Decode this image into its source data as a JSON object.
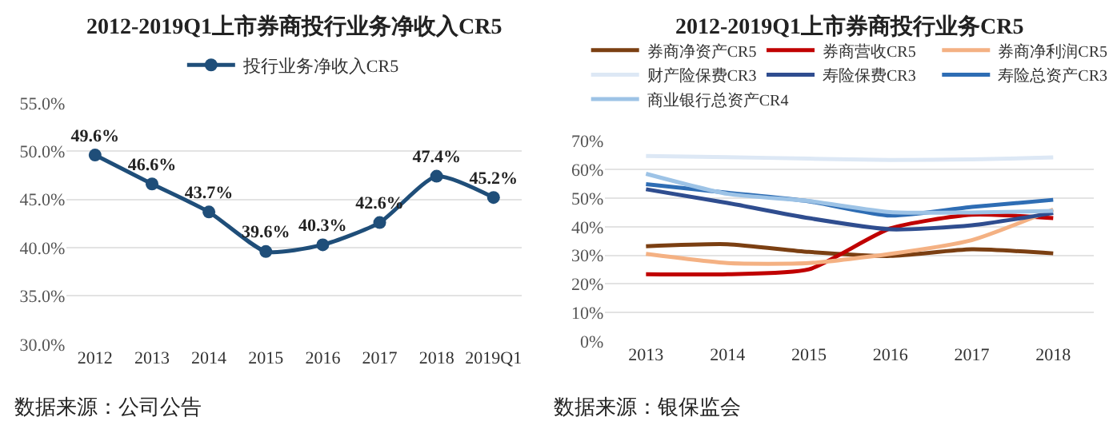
{
  "chart_data": [
    {
      "type": "line",
      "title": "2012-2019Q1上市券商投行业务净收入CR5",
      "categories": [
        "2012",
        "2013",
        "2014",
        "2015",
        "2016",
        "2017",
        "2018",
        "2019Q1"
      ],
      "series": [
        {
          "name": "投行业务净收入CR5",
          "color": "#1f4e79",
          "values": [
            49.6,
            46.6,
            43.7,
            39.6,
            40.3,
            42.6,
            47.4,
            45.2
          ],
          "value_labels": [
            "49.6%",
            "46.6%",
            "43.7%",
            "39.6%",
            "40.3%",
            "42.6%",
            "47.4%",
            "45.2%"
          ]
        }
      ],
      "ylim": [
        30,
        55
      ],
      "yticks": [
        {
          "value": 30,
          "label": "30.0%"
        },
        {
          "value": 35,
          "label": "35.0%"
        },
        {
          "value": 40,
          "label": "40.0%"
        },
        {
          "value": 45,
          "label": "45.0%"
        },
        {
          "value": 50,
          "label": "50.0%"
        },
        {
          "value": 55,
          "label": "55.0%"
        }
      ],
      "grid": "y",
      "legend": "top",
      "marker": "circle",
      "line_style": "solid",
      "annotations": [
        "数据来源：公司公告"
      ]
    },
    {
      "type": "line",
      "title": "2012-2019Q1上市券商投行业务CR5",
      "categories": [
        "2013",
        "2014",
        "2015",
        "2016",
        "2017",
        "2018"
      ],
      "series": [
        {
          "name": "券商净资产CR5",
          "color": "#7b3f12",
          "values": [
            33.2,
            33.9,
            31.2,
            29.8,
            32.1,
            30.7
          ]
        },
        {
          "name": "券商营收CR5",
          "color": "#c00000",
          "values": [
            23.4,
            23.4,
            25.1,
            39.4,
            44.2,
            43.0
          ]
        },
        {
          "name": "券商净利润CR5",
          "color": "#f4b183",
          "values": [
            30.5,
            27.3,
            27.3,
            30.5,
            35.3,
            46.0
          ]
        },
        {
          "name": "财产险保费CR3",
          "color": "#dde8f5",
          "values": [
            64.7,
            64.3,
            63.8,
            63.3,
            63.5,
            64.2
          ]
        },
        {
          "name": "寿险保费CR3",
          "color": "#2f4d8f",
          "values": [
            53.1,
            48.3,
            43.0,
            39.1,
            40.5,
            44.8
          ]
        },
        {
          "name": "寿险总资产CR3",
          "color": "#2e6db4",
          "values": [
            54.9,
            51.9,
            48.9,
            43.9,
            46.9,
            49.4
          ]
        },
        {
          "name": "商业银行总资产CR4",
          "color": "#9dc3e6",
          "values": [
            58.5,
            51.5,
            49.0,
            45.1,
            45.0,
            45.5
          ]
        }
      ],
      "ylim": [
        0,
        70
      ],
      "yticks": [
        {
          "value": 0,
          "label": "0%"
        },
        {
          "value": 10,
          "label": "10%"
        },
        {
          "value": 20,
          "label": "20%"
        },
        {
          "value": 30,
          "label": "30%"
        },
        {
          "value": 40,
          "label": "40%"
        },
        {
          "value": 50,
          "label": "50%"
        },
        {
          "value": 60,
          "label": "60%"
        },
        {
          "value": 70,
          "label": "70%"
        }
      ],
      "grid": "y",
      "legend": "top",
      "marker": "none",
      "line_style": "solid",
      "annotations": [
        "数据来源：银保监会"
      ]
    }
  ]
}
